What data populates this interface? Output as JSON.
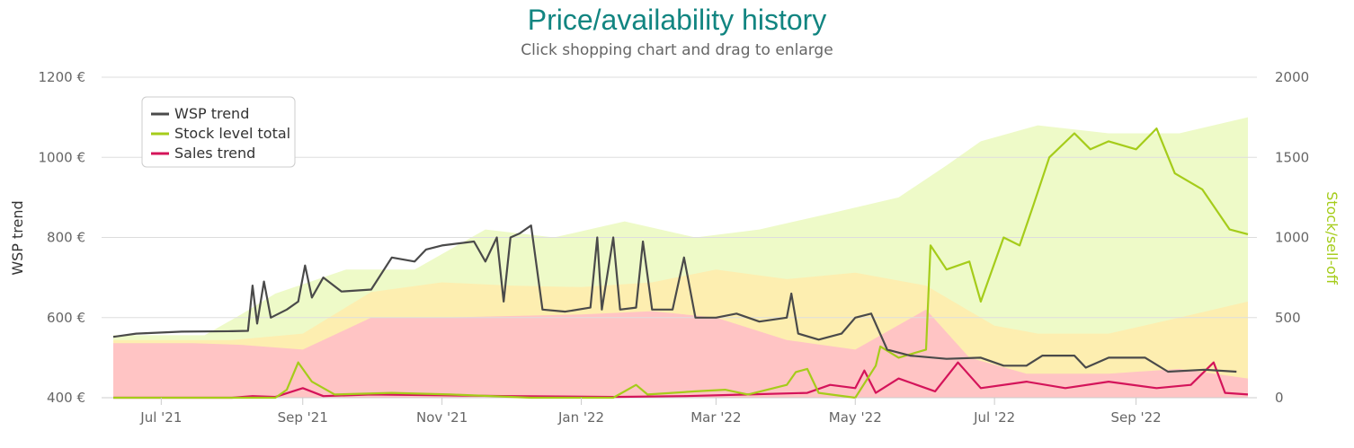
{
  "title": "Price/availability history",
  "subtitle": "Click shopping chart and drag to enlarge",
  "colors": {
    "title": "#128581",
    "wsp": "#4a4a4a",
    "stock": "#a5cc1a",
    "sales": "#d4145a",
    "band_green": "#eefac8",
    "band_yellow": "#fdeeb0",
    "band_red": "#ffc4c4",
    "grid": "#dddddd"
  },
  "chart_data": {
    "type": "line",
    "x_ticks": [
      "Jul '21",
      "Sep '21",
      "Nov '21",
      "Jan '22",
      "Mar '22",
      "May '22",
      "Jul '22",
      "Sep '22"
    ],
    "x_range": [
      "2021-06-10",
      "2022-10-20"
    ],
    "y_left": {
      "label": "WSP trend",
      "min": 400,
      "max": 1200,
      "ticks": [
        "400 €",
        "600 €",
        "800 €",
        "1000 €",
        "1200 €"
      ]
    },
    "y_right": {
      "label": "Stock/sell-off",
      "min": 0,
      "max": 2000,
      "ticks": [
        "0",
        "500",
        "1000",
        "1500",
        "2000"
      ]
    },
    "legend": {
      "position": "top-left",
      "items": [
        {
          "name": "WSP trend",
          "color": "#4a4a4a"
        },
        {
          "name": "Stock level total",
          "color": "#a5cc1a"
        },
        {
          "name": "Sales trend",
          "color": "#d4145a"
        }
      ]
    },
    "series": [
      {
        "name": "WSP trend",
        "axis": "left",
        "points": [
          [
            "2021-06-10",
            552
          ],
          [
            "2021-06-20",
            560
          ],
          [
            "2021-07-10",
            565
          ],
          [
            "2021-08-01",
            566
          ],
          [
            "2021-08-08",
            567
          ],
          [
            "2021-08-10",
            680
          ],
          [
            "2021-08-12",
            585
          ],
          [
            "2021-08-15",
            690
          ],
          [
            "2021-08-18",
            600
          ],
          [
            "2021-08-25",
            620
          ],
          [
            "2021-08-30",
            640
          ],
          [
            "2021-09-02",
            730
          ],
          [
            "2021-09-05",
            650
          ],
          [
            "2021-09-10",
            700
          ],
          [
            "2021-09-18",
            665
          ],
          [
            "2021-10-01",
            670
          ],
          [
            "2021-10-10",
            750
          ],
          [
            "2021-10-20",
            740
          ],
          [
            "2021-10-25",
            770
          ],
          [
            "2021-11-01",
            780
          ],
          [
            "2021-11-15",
            790
          ],
          [
            "2021-11-20",
            740
          ],
          [
            "2021-11-25",
            800
          ],
          [
            "2021-11-28",
            640
          ],
          [
            "2021-12-01",
            800
          ],
          [
            "2021-12-05",
            810
          ],
          [
            "2021-12-10",
            830
          ],
          [
            "2021-12-15",
            620
          ],
          [
            "2021-12-25",
            615
          ],
          [
            "2022-01-05",
            625
          ],
          [
            "2022-01-08",
            800
          ],
          [
            "2022-01-10",
            620
          ],
          [
            "2022-01-15",
            800
          ],
          [
            "2022-01-18",
            620
          ],
          [
            "2022-01-25",
            625
          ],
          [
            "2022-01-28",
            790
          ],
          [
            "2022-02-01",
            620
          ],
          [
            "2022-02-10",
            620
          ],
          [
            "2022-02-15",
            750
          ],
          [
            "2022-02-20",
            600
          ],
          [
            "2022-03-01",
            600
          ],
          [
            "2022-03-10",
            610
          ],
          [
            "2022-03-20",
            590
          ],
          [
            "2022-04-01",
            600
          ],
          [
            "2022-04-03",
            660
          ],
          [
            "2022-04-06",
            560
          ],
          [
            "2022-04-15",
            545
          ],
          [
            "2022-04-25",
            560
          ],
          [
            "2022-05-01",
            600
          ],
          [
            "2022-05-08",
            610
          ],
          [
            "2022-05-15",
            520
          ],
          [
            "2022-05-25",
            505
          ],
          [
            "2022-06-10",
            497
          ],
          [
            "2022-06-25",
            500
          ],
          [
            "2022-07-05",
            480
          ],
          [
            "2022-07-15",
            480
          ],
          [
            "2022-07-22",
            505
          ],
          [
            "2022-08-05",
            505
          ],
          [
            "2022-08-10",
            475
          ],
          [
            "2022-08-20",
            500
          ],
          [
            "2022-09-05",
            500
          ],
          [
            "2022-09-15",
            465
          ],
          [
            "2022-10-01",
            470
          ],
          [
            "2022-10-15",
            465
          ]
        ]
      },
      {
        "name": "Stock level total",
        "axis": "right",
        "points": [
          [
            "2021-06-10",
            0
          ],
          [
            "2021-08-20",
            0
          ],
          [
            "2021-08-25",
            50
          ],
          [
            "2021-08-30",
            220
          ],
          [
            "2021-09-05",
            100
          ],
          [
            "2021-09-15",
            20
          ],
          [
            "2021-10-10",
            30
          ],
          [
            "2021-11-05",
            20
          ],
          [
            "2021-12-10",
            0
          ],
          [
            "2022-01-15",
            0
          ],
          [
            "2022-01-25",
            80
          ],
          [
            "2022-01-30",
            20
          ],
          [
            "2022-02-20",
            40
          ],
          [
            "2022-03-05",
            50
          ],
          [
            "2022-03-15",
            20
          ],
          [
            "2022-04-01",
            80
          ],
          [
            "2022-04-05",
            160
          ],
          [
            "2022-04-10",
            180
          ],
          [
            "2022-04-15",
            30
          ],
          [
            "2022-05-01",
            0
          ],
          [
            "2022-05-10",
            200
          ],
          [
            "2022-05-12",
            320
          ],
          [
            "2022-05-20",
            250
          ],
          [
            "2022-06-01",
            300
          ],
          [
            "2022-06-03",
            950
          ],
          [
            "2022-06-10",
            800
          ],
          [
            "2022-06-20",
            850
          ],
          [
            "2022-06-25",
            600
          ],
          [
            "2022-07-05",
            1000
          ],
          [
            "2022-07-12",
            950
          ],
          [
            "2022-07-18",
            1200
          ],
          [
            "2022-07-25",
            1500
          ],
          [
            "2022-08-05",
            1650
          ],
          [
            "2022-08-12",
            1550
          ],
          [
            "2022-08-20",
            1600
          ],
          [
            "2022-09-01",
            1550
          ],
          [
            "2022-09-10",
            1680
          ],
          [
            "2022-09-18",
            1400
          ],
          [
            "2022-09-30",
            1300
          ],
          [
            "2022-10-12",
            1050
          ],
          [
            "2022-10-20",
            1020
          ]
        ]
      },
      {
        "name": "Sales trend",
        "axis": "right",
        "points": [
          [
            "2021-06-10",
            0
          ],
          [
            "2021-08-01",
            0
          ],
          [
            "2021-08-10",
            10
          ],
          [
            "2021-08-20",
            5
          ],
          [
            "2021-09-01",
            60
          ],
          [
            "2021-09-10",
            10
          ],
          [
            "2021-10-01",
            20
          ],
          [
            "2021-11-01",
            15
          ],
          [
            "2021-12-01",
            10
          ],
          [
            "2022-01-15",
            5
          ],
          [
            "2022-02-15",
            10
          ],
          [
            "2022-03-15",
            20
          ],
          [
            "2022-04-10",
            30
          ],
          [
            "2022-04-20",
            80
          ],
          [
            "2022-05-01",
            60
          ],
          [
            "2022-05-05",
            170
          ],
          [
            "2022-05-10",
            30
          ],
          [
            "2022-05-20",
            120
          ],
          [
            "2022-06-05",
            40
          ],
          [
            "2022-06-15",
            220
          ],
          [
            "2022-06-25",
            60
          ],
          [
            "2022-07-15",
            100
          ],
          [
            "2022-08-01",
            60
          ],
          [
            "2022-08-20",
            100
          ],
          [
            "2022-09-10",
            60
          ],
          [
            "2022-09-25",
            80
          ],
          [
            "2022-10-05",
            220
          ],
          [
            "2022-10-10",
            30
          ],
          [
            "2022-10-20",
            20
          ]
        ]
      },
      {
        "name": "",
        "axis": "right",
        "role": "background band (green)",
        "points": [
          [
            "2021-06-10",
            390
          ],
          [
            "2021-07-20",
            390
          ],
          [
            "2021-08-05",
            520
          ],
          [
            "2021-08-20",
            650
          ],
          [
            "2021-09-20",
            800
          ],
          [
            "2021-10-20",
            800
          ],
          [
            "2021-11-20",
            1050
          ],
          [
            "2021-12-20",
            1000
          ],
          [
            "2022-01-20",
            1100
          ],
          [
            "2022-02-20",
            1000
          ],
          [
            "2022-03-20",
            1050
          ],
          [
            "2022-04-20",
            1150
          ],
          [
            "2022-05-20",
            1250
          ],
          [
            "2022-06-10",
            1450
          ],
          [
            "2022-06-25",
            1600
          ],
          [
            "2022-07-20",
            1700
          ],
          [
            "2022-08-20",
            1650
          ],
          [
            "2022-09-20",
            1650
          ],
          [
            "2022-10-20",
            1750
          ]
        ]
      },
      {
        "name": "",
        "axis": "right",
        "role": "background band (yellow)",
        "points": [
          [
            "2021-06-10",
            360
          ],
          [
            "2021-08-01",
            360
          ],
          [
            "2021-09-01",
            400
          ],
          [
            "2021-10-01",
            660
          ],
          [
            "2021-11-01",
            720
          ],
          [
            "2021-12-01",
            700
          ],
          [
            "2022-01-01",
            690
          ],
          [
            "2022-02-01",
            720
          ],
          [
            "2022-03-01",
            800
          ],
          [
            "2022-04-01",
            740
          ],
          [
            "2022-05-01",
            780
          ],
          [
            "2022-06-01",
            700
          ],
          [
            "2022-07-01",
            450
          ],
          [
            "2022-07-20",
            400
          ],
          [
            "2022-08-20",
            400
          ],
          [
            "2022-09-20",
            500
          ],
          [
            "2022-10-20",
            600
          ]
        ]
      },
      {
        "name": "",
        "axis": "right",
        "role": "background band (red)",
        "points": [
          [
            "2021-06-10",
            340
          ],
          [
            "2021-07-15",
            340
          ],
          [
            "2021-08-05",
            330
          ],
          [
            "2021-09-01",
            300
          ],
          [
            "2021-10-01",
            500
          ],
          [
            "2021-11-01",
            500
          ],
          [
            "2021-12-01",
            510
          ],
          [
            "2022-01-01",
            520
          ],
          [
            "2022-02-01",
            540
          ],
          [
            "2022-03-01",
            500
          ],
          [
            "2022-04-01",
            360
          ],
          [
            "2022-05-01",
            300
          ],
          [
            "2022-06-01",
            550
          ],
          [
            "2022-06-20",
            250
          ],
          [
            "2022-07-15",
            150
          ],
          [
            "2022-08-20",
            150
          ],
          [
            "2022-09-20",
            180
          ],
          [
            "2022-10-20",
            120
          ]
        ]
      }
    ]
  }
}
